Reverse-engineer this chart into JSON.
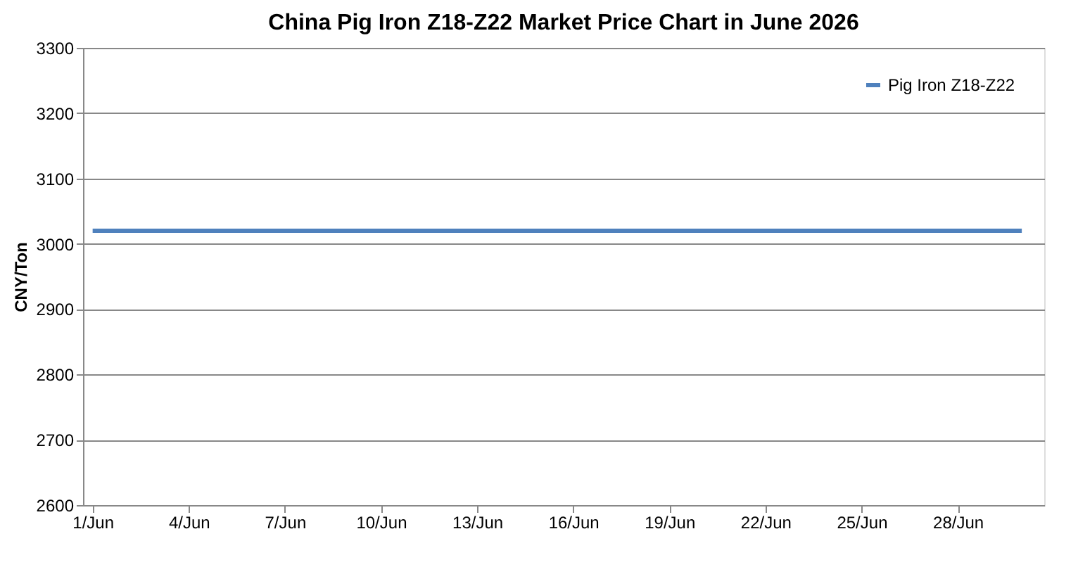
{
  "chart_data": {
    "type": "line",
    "title": "China Pig Iron Z18-Z22 Market Price Chart in June 2026",
    "ylabel": "CNY/Ton",
    "categories": [
      "1/Jun",
      null,
      null,
      "4/Jun",
      null,
      null,
      "7/Jun",
      null,
      null,
      "10/Jun",
      null,
      null,
      "13/Jun",
      null,
      null,
      "16/Jun",
      null,
      null,
      "19/Jun",
      null,
      null,
      "22/Jun",
      null,
      null,
      "25/Jun",
      null,
      null,
      "28/Jun",
      null,
      null
    ],
    "series": [
      {
        "name": "Pig Iron Z18-Z22",
        "color": "#4f81bd",
        "values": [
          3020,
          3020,
          3020,
          3020,
          3020,
          3020,
          3020,
          3020,
          3020,
          3020,
          3020,
          3020,
          3020,
          3020,
          3020,
          3020,
          3020,
          3020,
          3020,
          3020,
          3020,
          3020,
          3020,
          3020,
          3020,
          3020,
          3020,
          3020,
          3020,
          3020
        ]
      }
    ],
    "ylim": [
      2600,
      3300
    ],
    "yticks": [
      2600,
      2700,
      2800,
      2900,
      3000,
      3100,
      3200,
      3300
    ],
    "grid": "y",
    "legend": "top right",
    "marker": "none",
    "line_style": "solid"
  }
}
